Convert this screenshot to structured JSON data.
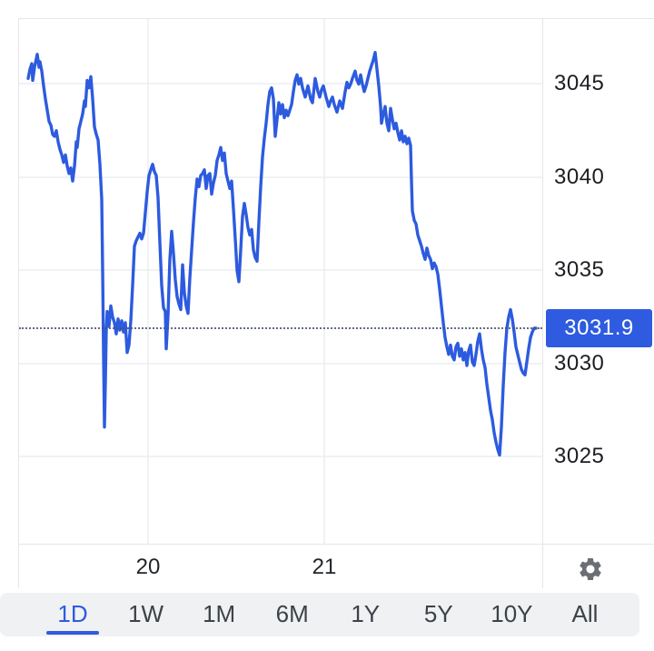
{
  "price_scale": {
    "ticks": [
      "3045",
      "3040",
      "3035",
      "3030",
      "3025"
    ],
    "last_price_label": "3031.9",
    "badge_color": "#2e5bdf",
    "badge_text_color": "#ffffff"
  },
  "time_axis": {
    "ticks": [
      "20",
      "21"
    ]
  },
  "toolbar": {
    "settings_icon": "gear-icon"
  },
  "tabs": {
    "active_color": "#2e5bdf",
    "inactive_color": "#3d4148",
    "items": [
      {
        "label": "1D",
        "active": true
      },
      {
        "label": "1W",
        "active": false
      },
      {
        "label": "1M",
        "active": false
      },
      {
        "label": "6M",
        "active": false
      },
      {
        "label": "1Y",
        "active": false
      },
      {
        "label": "5Y",
        "active": false
      },
      {
        "label": "10Y",
        "active": false
      },
      {
        "label": "All",
        "active": false
      }
    ]
  },
  "chart_data": {
    "type": "line",
    "title": "",
    "xlabel": "",
    "ylabel": "",
    "series_color": "#2d5bdf",
    "grid": true,
    "legend": false,
    "y_ticks": [
      3045,
      3040,
      3035,
      3030,
      3025
    ],
    "ylim": [
      3022.5,
      3048.5
    ],
    "x_tick_labels": [
      "20",
      "21"
    ],
    "last_price": 3031.9,
    "dotted_line_price": 3031.9,
    "points": [
      [
        31,
        3045.3
      ],
      [
        33,
        3045.8
      ],
      [
        35,
        3046.1
      ],
      [
        36,
        3045.2
      ],
      [
        38,
        3045.9
      ],
      [
        41,
        3046.6
      ],
      [
        43,
        3045.9
      ],
      [
        44,
        3046.2
      ],
      [
        46,
        3045.7
      ],
      [
        48,
        3044.9
      ],
      [
        50,
        3044.2
      ],
      [
        52,
        3043.6
      ],
      [
        54,
        3043.0
      ],
      [
        56,
        3042.8
      ],
      [
        58,
        3042.3
      ],
      [
        60,
        3042.2
      ],
      [
        62,
        3042.5
      ],
      [
        64,
        3041.9
      ],
      [
        66,
        3041.5
      ],
      [
        68,
        3041.2
      ],
      [
        70,
        3040.8
      ],
      [
        72,
        3041.2
      ],
      [
        74,
        3040.6
      ],
      [
        76,
        3040.2
      ],
      [
        78,
        3040.5
      ],
      [
        80,
        3039.8
      ],
      [
        82,
        3040.6
      ],
      [
        84,
        3041.9
      ],
      [
        85,
        3041.6
      ],
      [
        87,
        3042.6
      ],
      [
        89,
        3043.0
      ],
      [
        91,
        3043.4
      ],
      [
        93,
        3044.1
      ],
      [
        94,
        3043.8
      ],
      [
        96,
        3045.2
      ],
      [
        98,
        3044.8
      ],
      [
        100,
        3045.4
      ],
      [
        102,
        3044.2
      ],
      [
        104,
        3042.7
      ],
      [
        106,
        3042.3
      ],
      [
        108,
        3042.0
      ],
      [
        110,
        3040.7
      ],
      [
        112,
        3038.8
      ],
      [
        113,
        3035.0
      ],
      [
        114,
        3030.5
      ],
      [
        115,
        3026.6
      ],
      [
        116,
        3029.0
      ],
      [
        117,
        3031.8
      ],
      [
        118,
        3032.8
      ],
      [
        120,
        3032.0
      ],
      [
        122,
        3033.1
      ],
      [
        124,
        3032.5
      ],
      [
        126,
        3032.2
      ],
      [
        128,
        3031.6
      ],
      [
        130,
        3032.4
      ],
      [
        132,
        3031.8
      ],
      [
        134,
        3032.3
      ],
      [
        136,
        3031.7
      ],
      [
        138,
        3032.2
      ],
      [
        140,
        3030.6
      ],
      [
        142,
        3031.0
      ],
      [
        144,
        3032.3
      ],
      [
        146,
        3034.2
      ],
      [
        148,
        3036.3
      ],
      [
        150,
        3036.6
      ],
      [
        152,
        3036.8
      ],
      [
        154,
        3037.0
      ],
      [
        156,
        3036.7
      ],
      [
        158,
        3037.0
      ],
      [
        160,
        3038.1
      ],
      [
        162,
        3039.2
      ],
      [
        164,
        3040.1
      ],
      [
        166,
        3040.4
      ],
      [
        168,
        3040.7
      ],
      [
        170,
        3040.3
      ],
      [
        172,
        3040.1
      ],
      [
        174,
        3038.9
      ],
      [
        176,
        3036.5
      ],
      [
        178,
        3034.2
      ],
      [
        180,
        3033.0
      ],
      [
        182,
        3032.8
      ],
      [
        183,
        3030.8
      ],
      [
        185,
        3032.6
      ],
      [
        187,
        3035.6
      ],
      [
        189,
        3037.1
      ],
      [
        191,
        3035.9
      ],
      [
        193,
        3034.5
      ],
      [
        195,
        3033.6
      ],
      [
        197,
        3033.2
      ],
      [
        199,
        3032.9
      ],
      [
        201,
        3035.3
      ],
      [
        203,
        3033.8
      ],
      [
        205,
        3033.1
      ],
      [
        207,
        3032.7
      ],
      [
        209,
        3034.6
      ],
      [
        211,
        3036.1
      ],
      [
        213,
        3037.6
      ],
      [
        215,
        3038.9
      ],
      [
        217,
        3039.9
      ],
      [
        219,
        3039.5
      ],
      [
        221,
        3040.1
      ],
      [
        223,
        3040.2
      ],
      [
        225,
        3040.4
      ],
      [
        227,
        3039.4
      ],
      [
        229,
        3040.1
      ],
      [
        231,
        3040.2
      ],
      [
        233,
        3039.1
      ],
      [
        235,
        3039.7
      ],
      [
        237,
        3040.1
      ],
      [
        239,
        3040.9
      ],
      [
        241,
        3041.2
      ],
      [
        243,
        3041.6
      ],
      [
        245,
        3040.9
      ],
      [
        247,
        3041.3
      ],
      [
        249,
        3040.2
      ],
      [
        251,
        3039.8
      ],
      [
        253,
        3039.4
      ],
      [
        255,
        3039.8
      ],
      [
        257,
        3038.3
      ],
      [
        259,
        3036.7
      ],
      [
        261,
        3035.0
      ],
      [
        263,
        3034.4
      ],
      [
        265,
        3036.1
      ],
      [
        267,
        3037.9
      ],
      [
        269,
        3038.6
      ],
      [
        271,
        3038.0
      ],
      [
        273,
        3037.3
      ],
      [
        275,
        3036.9
      ],
      [
        277,
        3037.2
      ],
      [
        279,
        3036.1
      ],
      [
        281,
        3035.7
      ],
      [
        283,
        3035.5
      ],
      [
        285,
        3037.6
      ],
      [
        287,
        3039.5
      ],
      [
        289,
        3041.1
      ],
      [
        291,
        3042.1
      ],
      [
        293,
        3042.9
      ],
      [
        295,
        3043.9
      ],
      [
        297,
        3044.6
      ],
      [
        299,
        3044.8
      ],
      [
        301,
        3044.2
      ],
      [
        303,
        3042.2
      ],
      [
        305,
        3043.1
      ],
      [
        307,
        3044.0
      ],
      [
        309,
        3043.4
      ],
      [
        311,
        3043.9
      ],
      [
        313,
        3043.2
      ],
      [
        315,
        3043.6
      ],
      [
        317,
        3043.3
      ],
      [
        319,
        3043.6
      ],
      [
        321,
        3043.9
      ],
      [
        323,
        3044.6
      ],
      [
        325,
        3045.2
      ],
      [
        327,
        3045.5
      ],
      [
        329,
        3045.0
      ],
      [
        331,
        3045.3
      ],
      [
        333,
        3044.8
      ],
      [
        336,
        3044.3
      ],
      [
        339,
        3044.9
      ],
      [
        342,
        3044.2
      ],
      [
        344,
        3044.0
      ],
      [
        347,
        3045.3
      ],
      [
        350,
        3044.6
      ],
      [
        352,
        3044.3
      ],
      [
        354,
        3044.7
      ],
      [
        356,
        3044.9
      ],
      [
        359,
        3044.3
      ],
      [
        362,
        3043.8
      ],
      [
        364,
        3044.1
      ],
      [
        366,
        3044.3
      ],
      [
        368,
        3043.9
      ],
      [
        371,
        3043.5
      ],
      [
        374,
        3044.1
      ],
      [
        377,
        3043.7
      ],
      [
        380,
        3044.6
      ],
      [
        382,
        3045.1
      ],
      [
        384,
        3044.8
      ],
      [
        386,
        3045.0
      ],
      [
        388,
        3045.3
      ],
      [
        391,
        3045.7
      ],
      [
        393,
        3045.2
      ],
      [
        395,
        3045.0
      ],
      [
        397,
        3045.5
      ],
      [
        399,
        3045.0
      ],
      [
        401,
        3044.6
      ],
      [
        403,
        3044.9
      ],
      [
        405,
        3045.3
      ],
      [
        407,
        3045.7
      ],
      [
        409,
        3046.0
      ],
      [
        411,
        3046.3
      ],
      [
        413,
        3046.7
      ],
      [
        415,
        3045.8
      ],
      [
        417,
        3044.9
      ],
      [
        419,
        3043.8
      ],
      [
        420,
        3042.9
      ],
      [
        422,
        3043.4
      ],
      [
        424,
        3043.8
      ],
      [
        426,
        3042.9
      ],
      [
        428,
        3042.5
      ],
      [
        430,
        3043.7
      ],
      [
        432,
        3043.1
      ],
      [
        434,
        3042.6
      ],
      [
        436,
        3042.9
      ],
      [
        438,
        3042.4
      ],
      [
        440,
        3042.0
      ],
      [
        442,
        3042.5
      ],
      [
        444,
        3041.9
      ],
      [
        446,
        3042.2
      ],
      [
        448,
        3041.8
      ],
      [
        450,
        3042.1
      ],
      [
        452,
        3041.7
      ],
      [
        453,
        3039.8
      ],
      [
        454,
        3038.2
      ],
      [
        456,
        3037.7
      ],
      [
        458,
        3037.5
      ],
      [
        460,
        3036.9
      ],
      [
        462,
        3036.6
      ],
      [
        464,
        3036.3
      ],
      [
        466,
        3035.9
      ],
      [
        468,
        3035.6
      ],
      [
        470,
        3036.2
      ],
      [
        472,
        3035.8
      ],
      [
        474,
        3035.6
      ],
      [
        476,
        3035.1
      ],
      [
        478,
        3035.4
      ],
      [
        480,
        3035.2
      ],
      [
        482,
        3034.8
      ],
      [
        484,
        3034.0
      ],
      [
        486,
        3033.1
      ],
      [
        488,
        3032.2
      ],
      [
        490,
        3031.4
      ],
      [
        492,
        3030.9
      ],
      [
        494,
        3030.5
      ],
      [
        496,
        3031.0
      ],
      [
        498,
        3030.4
      ],
      [
        500,
        3030.2
      ],
      [
        502,
        3030.9
      ],
      [
        504,
        3031.1
      ],
      [
        506,
        3030.4
      ],
      [
        508,
        3030.8
      ],
      [
        510,
        3030.2
      ],
      [
        512,
        3030.6
      ],
      [
        514,
        3029.9
      ],
      [
        516,
        3030.7
      ],
      [
        518,
        3031.0
      ],
      [
        520,
        3030.1
      ],
      [
        522,
        3029.9
      ],
      [
        524,
        3030.5
      ],
      [
        526,
        3031.2
      ],
      [
        528,
        3031.6
      ],
      [
        530,
        3030.8
      ],
      [
        532,
        3030.2
      ],
      [
        534,
        3029.8
      ],
      [
        536,
        3028.9
      ],
      [
        538,
        3028.2
      ],
      [
        540,
        3027.5
      ],
      [
        542,
        3027.0
      ],
      [
        544,
        3026.3
      ],
      [
        546,
        3025.8
      ],
      [
        548,
        3025.4
      ],
      [
        550,
        3025.1
      ],
      [
        552,
        3026.6
      ],
      [
        554,
        3028.8
      ],
      [
        556,
        3030.6
      ],
      [
        558,
        3031.9
      ],
      [
        560,
        3032.5
      ],
      [
        562,
        3032.9
      ],
      [
        564,
        3032.4
      ],
      [
        566,
        3031.7
      ],
      [
        568,
        3030.9
      ],
      [
        570,
        3030.5
      ],
      [
        572,
        3030.1
      ],
      [
        574,
        3029.7
      ],
      [
        576,
        3029.5
      ],
      [
        578,
        3029.4
      ],
      [
        580,
        3030.1
      ],
      [
        582,
        3030.8
      ],
      [
        584,
        3031.4
      ],
      [
        586,
        3031.7
      ],
      [
        588,
        3031.9
      ],
      [
        590,
        3031.9
      ]
    ]
  }
}
